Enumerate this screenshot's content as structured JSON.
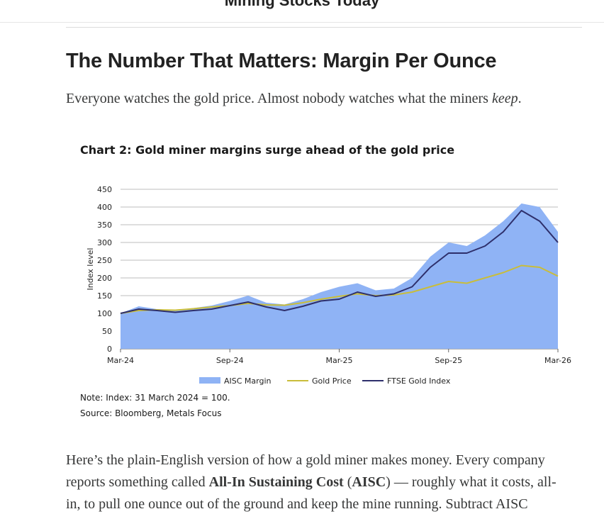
{
  "site": {
    "title": "Mining Stocks Today"
  },
  "article": {
    "heading": "The Number That Matters: Margin Per Ounce",
    "intro_before": "Everyone watches the gold price. Almost nobody watches what the miners ",
    "intro_em": "keep",
    "intro_after": ".",
    "p2_line1": "Here’s the plain-English version of how a gold miner makes money. Every company",
    "p2_line2_a": "reports something called ",
    "p2_line2_b": "All-In Sustaining Cost",
    "p2_line2_c": " (",
    "p2_line2_d": "AISC",
    "p2_line2_e": ") — roughly what it costs, all-",
    "p2_line3": "in, to pull one ounce out of the ground and keep the mine running. Subtract AISC"
  },
  "figure": {
    "note": "Note: Index: 31 March 2024 = 100.",
    "source": "Source: Bloomberg, Metals Focus"
  },
  "colors": {
    "aisc": "#8fb3f5",
    "gold": "#c9bd3a",
    "ftse": "#2e2f6b",
    "grid": "#bdbdbd"
  },
  "chart_data": {
    "type": "area",
    "title": "Chart 2: Gold miner margins surge ahead of the gold price",
    "ylabel": "Index level",
    "xlabel": "",
    "ylim": [
      0,
      450
    ],
    "yticks": [
      0,
      50,
      100,
      150,
      200,
      250,
      300,
      350,
      400,
      450
    ],
    "xticks": [
      "Mar-24",
      "Sep-24",
      "Mar-25",
      "Sep-25",
      "Mar-26"
    ],
    "legend_position": "bottom",
    "grid": true,
    "x": [
      "Mar-24",
      "Apr-24",
      "May-24",
      "Jun-24",
      "Jul-24",
      "Aug-24",
      "Sep-24",
      "Oct-24",
      "Nov-24",
      "Dec-24",
      "Jan-25",
      "Feb-25",
      "Mar-25",
      "Apr-25",
      "May-25",
      "Jun-25",
      "Jul-25",
      "Aug-25",
      "Sep-25",
      "Oct-25",
      "Nov-25",
      "Dec-25",
      "Jan-26",
      "Feb-26",
      "Mar-26"
    ],
    "series": [
      {
        "name": "AISC Margin",
        "style": "area",
        "values": [
          100,
          120,
          112,
          108,
          115,
          122,
          135,
          150,
          130,
          125,
          140,
          160,
          175,
          185,
          165,
          170,
          200,
          260,
          300,
          290,
          320,
          360,
          410,
          400,
          330
        ]
      },
      {
        "name": "Gold Price",
        "style": "line",
        "values": [
          100,
          108,
          110,
          109,
          113,
          118,
          122,
          128,
          124,
          123,
          130,
          140,
          148,
          155,
          150,
          152,
          160,
          175,
          190,
          185,
          200,
          215,
          235,
          230,
          205
        ]
      },
      {
        "name": "FTSE Gold Index",
        "style": "line",
        "values": [
          100,
          112,
          108,
          103,
          108,
          112,
          122,
          132,
          118,
          108,
          120,
          135,
          140,
          160,
          148,
          155,
          175,
          230,
          270,
          270,
          290,
          330,
          390,
          360,
          300
        ]
      }
    ]
  }
}
